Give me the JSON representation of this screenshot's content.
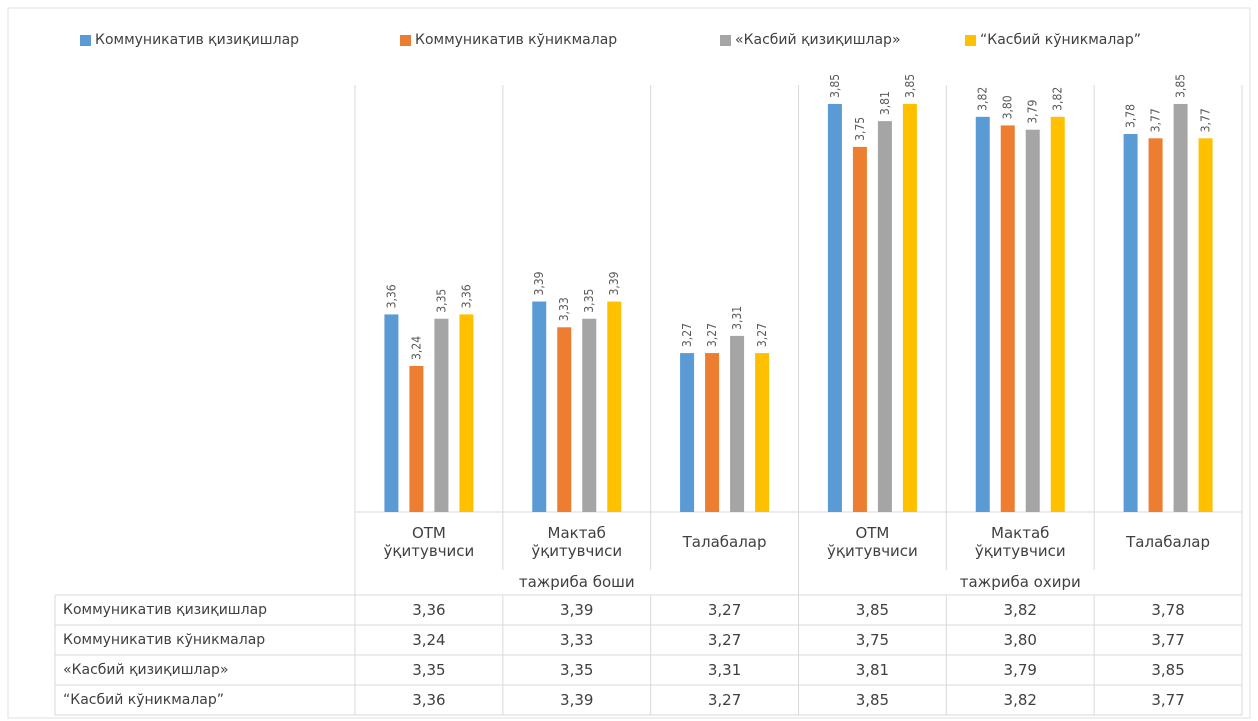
{
  "chart_data": {
    "type": "bar",
    "categories": [
      "ОТМ ўқитувчиси",
      "Мактаб ўқитувчиси",
      "Талабалар",
      "ОТМ ўқитувчиси",
      "Мактаб ўқитувчиси",
      "Талабалар"
    ],
    "groups": [
      "тажриба боши",
      "тажриба охири"
    ],
    "series": [
      {
        "name": "Коммуникатив қизиқишлар",
        "color": "#5b9bd5",
        "values": [
          3.36,
          3.39,
          3.27,
          3.85,
          3.82,
          3.78
        ],
        "value_labels": [
          "3,36",
          "3,39",
          "3,27",
          "3,85",
          "3,82",
          "3,78"
        ]
      },
      {
        "name": "Коммуникатив кўникмалар",
        "color": "#ed7d31",
        "values": [
          3.24,
          3.33,
          3.27,
          3.75,
          3.8,
          3.77
        ],
        "value_labels": [
          "3,24",
          "3,33",
          "3,27",
          "3,75",
          "3,80",
          "3,77"
        ]
      },
      {
        "name": "«Касбий қизиқишлар»",
        "color": "#a5a5a5",
        "values": [
          3.35,
          3.35,
          3.31,
          3.81,
          3.79,
          3.85
        ],
        "value_labels": [
          "3,35",
          "3,35",
          "3,31",
          "3,81",
          "3,79",
          "3,85"
        ]
      },
      {
        "name": "“Касбий кўникмалар”",
        "color": "#ffc000",
        "values": [
          3.36,
          3.39,
          3.27,
          3.85,
          3.82,
          3.77
        ],
        "value_labels": [
          "3,36",
          "3,39",
          "3,27",
          "3,85",
          "3,82",
          "3,77"
        ]
      }
    ],
    "ylim": [
      2.9,
      3.95
    ],
    "legend": "top",
    "data_table": true
  }
}
